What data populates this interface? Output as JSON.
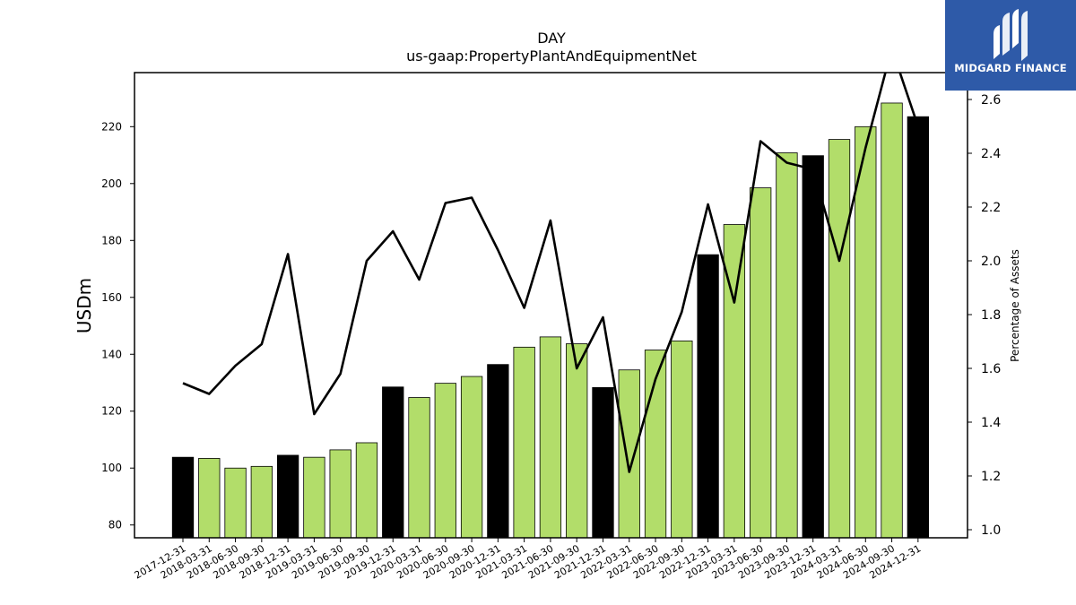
{
  "chart_data": {
    "type": "bar",
    "title": "DAY",
    "subtitle": "us-gaap:PropertyPlantAndEquipmentNet",
    "ylabel": "USDm",
    "ylabel_right": "Percentage of Assets",
    "ylim": [
      75.5,
      239
    ],
    "ylim_right": [
      0.97,
      2.7
    ],
    "yticks": [
      80,
      100,
      120,
      140,
      160,
      180,
      200,
      220
    ],
    "yticks_right": [
      "1.0",
      "1.2",
      "1.4",
      "1.6",
      "1.8",
      "2.0",
      "2.2",
      "2.4",
      "2.6"
    ],
    "categories": [
      "2017-12-31",
      "2018-03-31",
      "2018-06-30",
      "2018-09-30",
      "2018-12-31",
      "2019-03-31",
      "2019-06-30",
      "2019-09-30",
      "2019-12-31",
      "2020-03-31",
      "2020-06-30",
      "2020-09-30",
      "2020-12-31",
      "2021-03-31",
      "2021-06-30",
      "2021-09-30",
      "2021-12-31",
      "2022-03-31",
      "2022-06-30",
      "2022-09-30",
      "2022-12-31",
      "2023-03-31",
      "2023-06-30",
      "2023-09-30",
      "2023-12-31",
      "2024-03-31",
      "2024-06-30",
      "2024-09-30",
      "2024-12-31"
    ],
    "series": [
      {
        "values": [
          103.8,
          103.4,
          100.0,
          100.6,
          104.5,
          103.8,
          106.4,
          108.9,
          128.5,
          124.8,
          129.8,
          132.2,
          136.4,
          142.5,
          146.1,
          143.7,
          128.3,
          134.5,
          141.5,
          144.7,
          175.0,
          185.6,
          198.5,
          210.8,
          209.8,
          215.5,
          220.0,
          228.3,
          223.5
        ],
        "colors": [
          "#000000",
          "#b2dd6a",
          "#b2dd6a",
          "#b2dd6a",
          "#000000",
          "#b2dd6a",
          "#b2dd6a",
          "#b2dd6a",
          "#000000",
          "#b2dd6a",
          "#b2dd6a",
          "#b2dd6a",
          "#000000",
          "#b2dd6a",
          "#b2dd6a",
          "#b2dd6a",
          "#000000",
          "#b2dd6a",
          "#b2dd6a",
          "#b2dd6a",
          "#000000",
          "#b2dd6a",
          "#b2dd6a",
          "#b2dd6a",
          "#000000",
          "#b2dd6a",
          "#b2dd6a",
          "#b2dd6a",
          "#000000"
        ]
      },
      {
        "type": "line",
        "axis": "right",
        "color": "#000000",
        "values": [
          1.545,
          1.505,
          1.61,
          1.69,
          2.025,
          1.43,
          1.58,
          2.0,
          2.11,
          1.93,
          2.215,
          2.235,
          2.04,
          1.825,
          2.15,
          1.6,
          1.79,
          1.215,
          1.56,
          1.81,
          2.21,
          1.845,
          2.445,
          2.365,
          2.34,
          2.0,
          2.42,
          2.79,
          2.5
        ]
      }
    ],
    "bar_colors": {
      "annual": "#000000",
      "quarterly": "#b2dd6a"
    }
  },
  "logo": {
    "text": "MIDGARD FINANCE"
  }
}
